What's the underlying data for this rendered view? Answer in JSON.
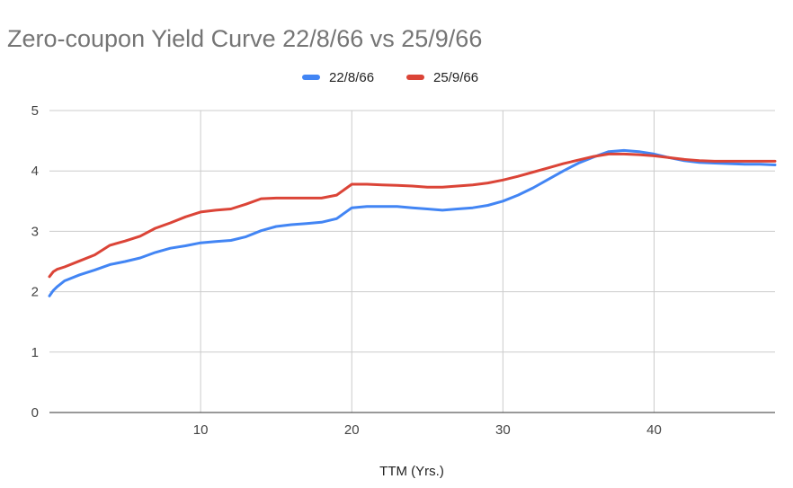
{
  "chart_data": {
    "type": "line",
    "title": "Zero-coupon Yield Curve 22/8/66 vs 25/9/66",
    "xlabel": "TTM (Yrs.)",
    "ylabel": "",
    "xlim": [
      0,
      48
    ],
    "ylim": [
      0,
      5
    ],
    "x_ticks": [
      10,
      20,
      30,
      40
    ],
    "y_ticks": [
      0,
      1,
      2,
      3,
      4,
      5
    ],
    "grid": true,
    "legend_position": "top",
    "series": [
      {
        "name": "22/8/66",
        "color": "#4285f4",
        "points": [
          [
            0,
            1.93
          ],
          [
            0.25,
            2.02
          ],
          [
            0.5,
            2.08
          ],
          [
            1,
            2.18
          ],
          [
            2,
            2.28
          ],
          [
            3,
            2.36
          ],
          [
            4,
            2.45
          ],
          [
            5,
            2.5
          ],
          [
            6,
            2.56
          ],
          [
            7,
            2.65
          ],
          [
            8,
            2.72
          ],
          [
            9,
            2.76
          ],
          [
            10,
            2.81
          ],
          [
            11,
            2.83
          ],
          [
            12,
            2.85
          ],
          [
            13,
            2.91
          ],
          [
            14,
            3.01
          ],
          [
            15,
            3.08
          ],
          [
            16,
            3.11
          ],
          [
            17,
            3.13
          ],
          [
            18,
            3.15
          ],
          [
            19,
            3.21
          ],
          [
            20,
            3.39
          ],
          [
            21,
            3.41
          ],
          [
            22,
            3.41
          ],
          [
            23,
            3.41
          ],
          [
            24,
            3.39
          ],
          [
            25,
            3.37
          ],
          [
            26,
            3.35
          ],
          [
            27,
            3.37
          ],
          [
            28,
            3.39
          ],
          [
            29,
            3.43
          ],
          [
            30,
            3.5
          ],
          [
            31,
            3.6
          ],
          [
            32,
            3.72
          ],
          [
            33,
            3.86
          ],
          [
            34,
            4.0
          ],
          [
            35,
            4.13
          ],
          [
            36,
            4.23
          ],
          [
            37,
            4.32
          ],
          [
            38,
            4.34
          ],
          [
            39,
            4.32
          ],
          [
            40,
            4.28
          ],
          [
            41,
            4.22
          ],
          [
            42,
            4.17
          ],
          [
            43,
            4.14
          ],
          [
            44,
            4.13
          ],
          [
            45,
            4.12
          ],
          [
            46,
            4.11
          ],
          [
            47,
            4.11
          ],
          [
            48,
            4.1
          ]
        ]
      },
      {
        "name": "25/9/66",
        "color": "#db4437",
        "points": [
          [
            0,
            2.25
          ],
          [
            0.25,
            2.33
          ],
          [
            0.5,
            2.37
          ],
          [
            1,
            2.41
          ],
          [
            2,
            2.51
          ],
          [
            3,
            2.61
          ],
          [
            4,
            2.77
          ],
          [
            5,
            2.84
          ],
          [
            6,
            2.92
          ],
          [
            7,
            3.05
          ],
          [
            8,
            3.14
          ],
          [
            9,
            3.24
          ],
          [
            10,
            3.32
          ],
          [
            11,
            3.35
          ],
          [
            12,
            3.37
          ],
          [
            13,
            3.45
          ],
          [
            14,
            3.54
          ],
          [
            15,
            3.55
          ],
          [
            16,
            3.55
          ],
          [
            17,
            3.55
          ],
          [
            18,
            3.55
          ],
          [
            19,
            3.6
          ],
          [
            20,
            3.78
          ],
          [
            21,
            3.78
          ],
          [
            22,
            3.77
          ],
          [
            23,
            3.76
          ],
          [
            24,
            3.75
          ],
          [
            25,
            3.73
          ],
          [
            26,
            3.73
          ],
          [
            27,
            3.75
          ],
          [
            28,
            3.77
          ],
          [
            29,
            3.8
          ],
          [
            30,
            3.85
          ],
          [
            31,
            3.91
          ],
          [
            32,
            3.98
          ],
          [
            33,
            4.05
          ],
          [
            34,
            4.12
          ],
          [
            35,
            4.18
          ],
          [
            36,
            4.24
          ],
          [
            37,
            4.28
          ],
          [
            38,
            4.28
          ],
          [
            39,
            4.27
          ],
          [
            40,
            4.25
          ],
          [
            41,
            4.22
          ],
          [
            42,
            4.19
          ],
          [
            43,
            4.17
          ],
          [
            44,
            4.16
          ],
          [
            45,
            4.16
          ],
          [
            46,
            4.16
          ],
          [
            47,
            4.16
          ],
          [
            48,
            4.16
          ]
        ]
      }
    ]
  }
}
